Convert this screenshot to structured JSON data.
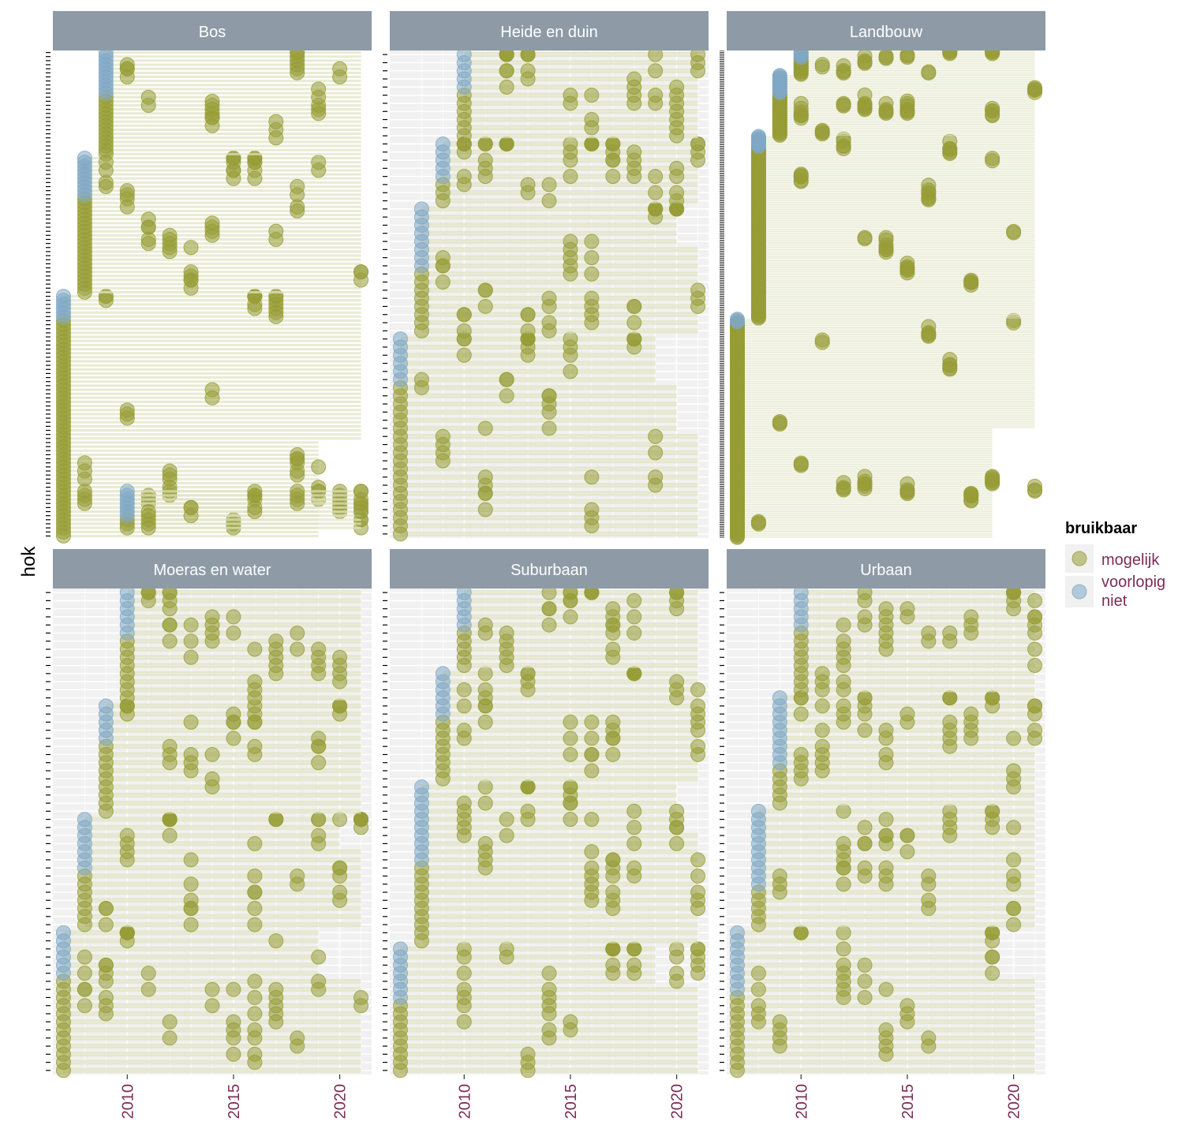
{
  "chart_data": {
    "type": "scatter",
    "ylabel": "hok",
    "xlabel": "",
    "x_ticks": [
      2010,
      2015,
      2020
    ],
    "xlim": [
      2006.5,
      2021.5
    ],
    "legend": {
      "title": "bruikbaar",
      "placement": "right",
      "entries": [
        {
          "label": "mogelijk",
          "color": "#979c36"
        },
        {
          "label": "voorlopig niet",
          "color": "#7fa7c5"
        }
      ]
    },
    "colors": {
      "strip": "#8e9ba6",
      "panel_bg": "#f1f1f1",
      "band": "#e4e7cb",
      "tick_label": "#7b2d55"
    },
    "panels": [
      {
        "title": "Bos",
        "n_hok": 120,
        "bg": "#ffffff",
        "segments": [
          {
            "start": 2007,
            "top": 6,
            "rows": [
              1,
              60
            ],
            "ends": [
              2019,
              2019,
              2021,
              2021,
              2021
            ]
          },
          {
            "start": 2008,
            "top": 10,
            "rows": [
              61,
              94
            ],
            "ends": [
              2021,
              2021,
              2021
            ]
          },
          {
            "start": 2009,
            "top": 11,
            "rows": [
              95,
              120
            ],
            "ends": [
              2021,
              2021
            ]
          },
          {
            "start": 2010,
            "top": 7,
            "rows": [
              3,
              12
            ],
            "ends": [
              2021,
              2021
            ]
          }
        ]
      },
      {
        "title": "Heide en duin",
        "n_hok": 60,
        "bg": "#f1f1f1",
        "segments": [
          {
            "start": 2007,
            "top": 6,
            "rows": [
              1,
              25
            ],
            "ends": [
              2021,
              2021,
              2020,
              2019
            ]
          },
          {
            "start": 2008,
            "top": 8,
            "rows": [
              26,
              41
            ],
            "ends": [
              2021,
              2021,
              2020
            ]
          },
          {
            "start": 2009,
            "top": 5,
            "rows": [
              42,
              49
            ],
            "ends": [
              2021,
              2021
            ]
          },
          {
            "start": 2010,
            "top": 5,
            "rows": [
              50,
              60
            ],
            "ends": [
              2021,
              2021
            ]
          }
        ]
      },
      {
        "title": "Landbouw",
        "n_hok": 400,
        "bg": "#ffffff",
        "segments": [
          {
            "start": 2007,
            "top": 3,
            "rows": [
              1,
              180
            ],
            "ends": [
              2019,
              2019,
              2021,
              2021
            ]
          },
          {
            "start": 2008,
            "top": 9,
            "rows": [
              181,
              330
            ],
            "ends": [
              2021,
              2021,
              2021
            ]
          },
          {
            "start": 2009,
            "top": 15,
            "rows": [
              331,
              380
            ],
            "ends": [
              2021,
              2021
            ]
          },
          {
            "start": 2010,
            "top": 6,
            "rows": [
              381,
              400
            ],
            "ends": [
              2021
            ]
          }
        ]
      },
      {
        "title": "Moeras en water",
        "n_hok": 60,
        "bg": "#f1f1f1",
        "segments": [
          {
            "start": 2007,
            "top": 6,
            "rows": [
              1,
              18
            ],
            "ends": [
              2021,
              2021,
              2019
            ]
          },
          {
            "start": 2008,
            "top": 7,
            "rows": [
              19,
              32
            ],
            "ends": [
              2021,
              2021,
              2020
            ]
          },
          {
            "start": 2009,
            "top": 5,
            "rows": [
              33,
              46
            ],
            "ends": [
              2021,
              2021
            ]
          },
          {
            "start": 2010,
            "top": 6,
            "rows": [
              47,
              60
            ],
            "ends": [
              2021,
              2021
            ]
          }
        ]
      },
      {
        "title": "Suburbaan",
        "n_hok": 60,
        "bg": "#f1f1f1",
        "segments": [
          {
            "start": 2007,
            "top": 7,
            "rows": [
              1,
              16
            ],
            "ends": [
              2021,
              2021,
              2019
            ]
          },
          {
            "start": 2008,
            "top": 10,
            "rows": [
              17,
              36
            ],
            "ends": [
              2021,
              2021,
              2020
            ]
          },
          {
            "start": 2009,
            "top": 6,
            "rows": [
              37,
              50
            ],
            "ends": [
              2021,
              2021
            ]
          },
          {
            "start": 2010,
            "top": 5,
            "rows": [
              51,
              60
            ],
            "ends": [
              2021,
              2021
            ]
          }
        ]
      },
      {
        "title": "Urbaan",
        "n_hok": 60,
        "bg": "#f1f1f1",
        "segments": [
          {
            "start": 2007,
            "top": 8,
            "rows": [
              1,
              18
            ],
            "ends": [
              2021,
              2021,
              2019
            ]
          },
          {
            "start": 2008,
            "top": 10,
            "rows": [
              19,
              33
            ],
            "ends": [
              2021,
              2021,
              2021
            ]
          },
          {
            "start": 2009,
            "top": 9,
            "rows": [
              34,
              47
            ],
            "ends": [
              2021,
              2021
            ]
          },
          {
            "start": 2010,
            "top": 5,
            "rows": [
              48,
              60
            ],
            "ends": [
              2021,
              2021
            ]
          }
        ]
      }
    ]
  }
}
